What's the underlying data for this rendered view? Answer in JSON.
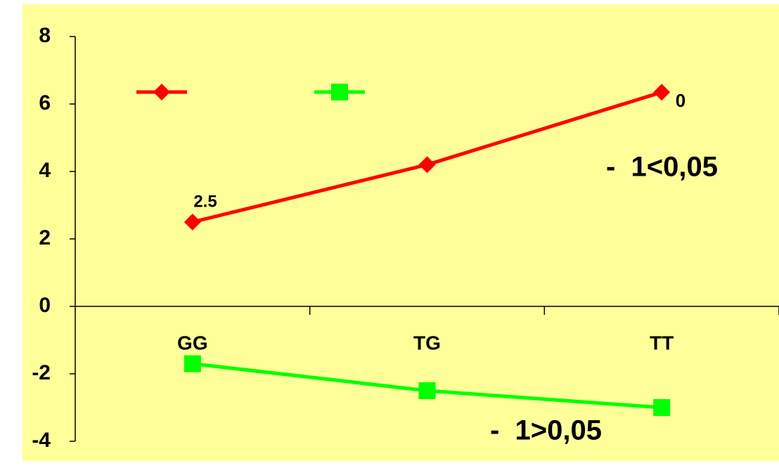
{
  "chart_data": {
    "type": "line",
    "categories": [
      "GG",
      "TG",
      "TT"
    ],
    "series": [
      {
        "color": "#ff0000",
        "marker": "diamond",
        "values": [
          2.5,
          4.2,
          6.35
        ]
      },
      {
        "color": "#00ff00",
        "marker": "square",
        "values": [
          -1.7,
          -2.5,
          -3.0
        ]
      }
    ],
    "ylim": [
      -4,
      8
    ],
    "yticks": [
      -4,
      -2,
      0,
      2,
      4,
      6,
      8
    ],
    "annotations": [
      "2.5",
      "0",
      "-  1<0,05",
      "-  1>0,05"
    ],
    "background": "#ffff99"
  }
}
